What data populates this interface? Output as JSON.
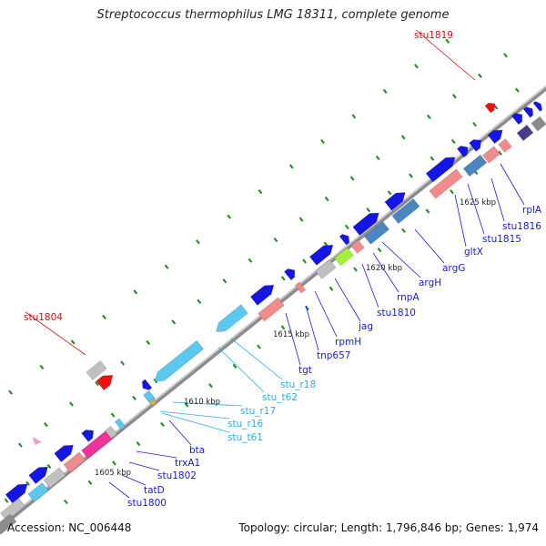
{
  "title": "Streptococcus thermophilus LMG 18311, complete genome",
  "footer": {
    "accession": "Accession: NC_006448",
    "summary": "Topology: circular; Length: 1,796,846 bp; Genes: 1,974"
  },
  "colors": {
    "gene": "#1515e6",
    "gene_steel": "#4a86c0",
    "rna": "#5bc8f0",
    "pseudo_gray": "#c0c0c0",
    "pink": "#f08c8c",
    "magenta": "#f0329a",
    "lime": "#a4f03a",
    "purple": "#4a3a8a",
    "red_marker": "#ee1111",
    "tick": "#2e8b2e",
    "label_blue": "#1a1acc",
    "label_cyan": "#2aaee0",
    "label_red": "#cc1111",
    "backbone": "#8c8c8c"
  },
  "scale_labels": [
    "1605 kbp",
    "1610 kbp",
    "1615 kbp",
    "1620 kbp",
    "1625 kbp"
  ],
  "gene_labels": [
    {
      "text": "stu1800",
      "color": "blue"
    },
    {
      "text": "tatD",
      "color": "blue"
    },
    {
      "text": "stu1802",
      "color": "blue"
    },
    {
      "text": "trxA1",
      "color": "blue"
    },
    {
      "text": "bta",
      "color": "blue"
    },
    {
      "text": "stu_t61",
      "color": "cyan"
    },
    {
      "text": "stu_r16",
      "color": "cyan"
    },
    {
      "text": "stu_r17",
      "color": "cyan"
    },
    {
      "text": "stu_t62",
      "color": "cyan"
    },
    {
      "text": "stu_r18",
      "color": "cyan"
    },
    {
      "text": "tgt",
      "color": "blue"
    },
    {
      "text": "tnp657",
      "color": "blue"
    },
    {
      "text": "rpmH",
      "color": "blue"
    },
    {
      "text": "jag",
      "color": "blue"
    },
    {
      "text": "stu1810",
      "color": "blue"
    },
    {
      "text": "rnpA",
      "color": "blue"
    },
    {
      "text": "argH",
      "color": "blue"
    },
    {
      "text": "argG",
      "color": "blue"
    },
    {
      "text": "gltX",
      "color": "blue"
    },
    {
      "text": "stu1815",
      "color": "blue"
    },
    {
      "text": "stu1816",
      "color": "blue"
    },
    {
      "text": "rplA",
      "color": "blue"
    },
    {
      "text": "stu1804",
      "color": "red"
    },
    {
      "text": "stu1819",
      "color": "red"
    }
  ]
}
